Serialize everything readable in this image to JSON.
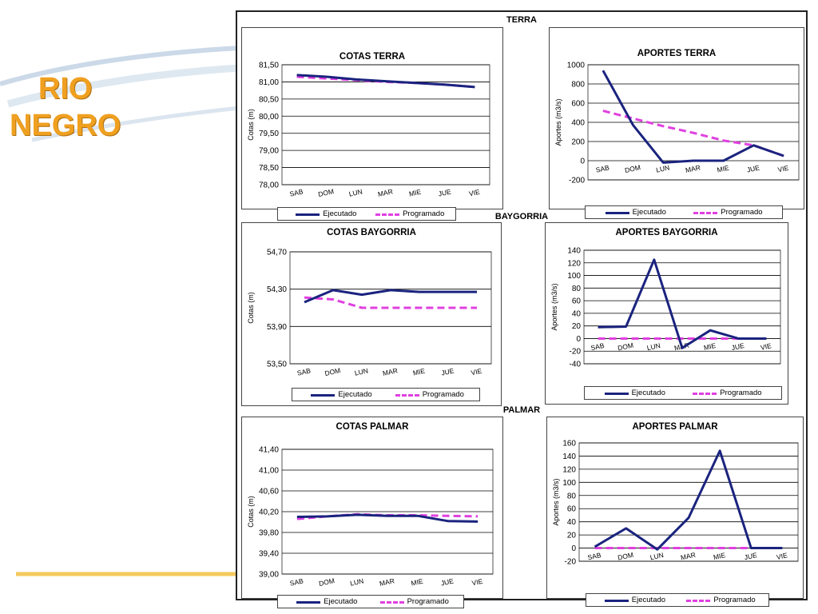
{
  "slide": {
    "title_line1": "RIO",
    "title_line2": "NEGRO"
  },
  "colors": {
    "ejecutado": "#1a237e",
    "programado": "#e040e0",
    "title": "#f0a020"
  },
  "sections": {
    "terra": "TERRA",
    "baygorria": "BAYGORRIA",
    "palmar": "PALMAR"
  },
  "legend": {
    "ejecutado": "Ejecutado",
    "programado": "Programado"
  },
  "chart_data": [
    {
      "id": "cotas_terra",
      "type": "line",
      "title": "COTAS TERRA",
      "xlabel": "",
      "ylabel": "Cotas (m)",
      "categories": [
        "SAB",
        "DOM",
        "LUN",
        "MAR",
        "MIE",
        "JUE",
        "VIE"
      ],
      "ylim": [
        78.0,
        81.5
      ],
      "yticks": [
        "78,00",
        "78,50",
        "79,00",
        "79,50",
        "80,00",
        "80,50",
        "81,00",
        "81,50"
      ],
      "series": [
        {
          "name": "Ejecutado",
          "values": [
            81.2,
            81.15,
            81.07,
            81.02,
            80.97,
            80.92,
            80.85
          ]
        },
        {
          "name": "Programado",
          "values": [
            81.15,
            81.1,
            81.05,
            81.0,
            80.97,
            80.92,
            80.85
          ]
        }
      ],
      "legend": "bottom",
      "grid": true
    },
    {
      "id": "aportes_terra",
      "type": "line",
      "title": "APORTES TERRA",
      "xlabel": "",
      "ylabel": "Aportes (m3/s)",
      "categories": [
        "SAB",
        "DOM",
        "LUN",
        "MAR",
        "MIE",
        "JUE",
        "VIE"
      ],
      "ylim": [
        -200,
        1000
      ],
      "yticks": [
        "-200",
        "0",
        "200",
        "400",
        "600",
        "800",
        "1000"
      ],
      "series": [
        {
          "name": "Ejecutado",
          "values": [
            940,
            370,
            -20,
            0,
            0,
            160,
            50
          ]
        },
        {
          "name": "Programado",
          "values": [
            520,
            440,
            360,
            290,
            210,
            160,
            50
          ]
        }
      ],
      "legend": "bottom",
      "grid": true
    },
    {
      "id": "cotas_baygorria",
      "type": "line",
      "title": "COTAS BAYGORRIA",
      "xlabel": "",
      "ylabel": "Cotas (m)",
      "categories": [
        "SAB",
        "DOM",
        "LUN",
        "MAR",
        "MIE",
        "JUE",
        "VIE"
      ],
      "ylim": [
        53.5,
        54.7
      ],
      "yticks": [
        "53,50",
        "53,90",
        "54,30",
        "54,70"
      ],
      "series": [
        {
          "name": "Ejecutado",
          "values": [
            54.16,
            54.29,
            54.24,
            54.29,
            54.27,
            54.27,
            54.27
          ]
        },
        {
          "name": "Programado",
          "values": [
            54.21,
            54.19,
            54.1,
            54.1,
            54.1,
            54.1,
            54.1
          ]
        }
      ],
      "legend": "bottom",
      "grid": true
    },
    {
      "id": "aportes_baygorria",
      "type": "line",
      "title": "APORTES BAYGORRIA",
      "xlabel": "",
      "ylabel": "Aportes (m3/s)",
      "categories": [
        "SAB",
        "DOM",
        "LUN",
        "MAR",
        "MIE",
        "JUE",
        "VIE"
      ],
      "ylim": [
        -40,
        140
      ],
      "yticks": [
        "-40",
        "-20",
        "0",
        "20",
        "40",
        "60",
        "80",
        "100",
        "120",
        "140"
      ],
      "series": [
        {
          "name": "Ejecutado",
          "values": [
            18,
            19,
            125,
            -15,
            13,
            0,
            0
          ]
        },
        {
          "name": "Programado",
          "values": [
            0,
            0,
            0,
            0,
            0,
            0,
            0
          ]
        }
      ],
      "legend": "bottom",
      "grid": true
    },
    {
      "id": "cotas_palmar",
      "type": "line",
      "title": "COTAS PALMAR",
      "xlabel": "",
      "ylabel": "Cotas (m)",
      "categories": [
        "SAB",
        "DOM",
        "LUN",
        "MAR",
        "MIE",
        "JUE",
        "VIE"
      ],
      "ylim": [
        39.0,
        41.4
      ],
      "yticks": [
        "39,00",
        "39,40",
        "39,80",
        "40,20",
        "40,60",
        "41,00",
        "41,40"
      ],
      "series": [
        {
          "name": "Ejecutado",
          "values": [
            40.1,
            40.11,
            40.14,
            40.12,
            40.12,
            40.02,
            40.01
          ]
        },
        {
          "name": "Programado",
          "values": [
            40.06,
            40.11,
            40.15,
            40.13,
            40.13,
            40.12,
            40.11
          ]
        }
      ],
      "legend": "bottom",
      "grid": true
    },
    {
      "id": "aportes_palmar",
      "type": "line",
      "title": "APORTES PALMAR",
      "xlabel": "",
      "ylabel": "Aportes (m3/s)",
      "categories": [
        "SAB",
        "DOM",
        "LUN",
        "MAR",
        "MIE",
        "JUE",
        "VIE"
      ],
      "ylim": [
        -20,
        160
      ],
      "yticks": [
        "-20",
        "0",
        "20",
        "40",
        "60",
        "80",
        "100",
        "120",
        "140",
        "160"
      ],
      "series": [
        {
          "name": "Ejecutado",
          "values": [
            2,
            30,
            -2,
            46,
            148,
            0,
            0
          ]
        },
        {
          "name": "Programado",
          "values": [
            0,
            0,
            0,
            0,
            0,
            0,
            0
          ]
        }
      ],
      "legend": "bottom",
      "grid": true
    }
  ]
}
